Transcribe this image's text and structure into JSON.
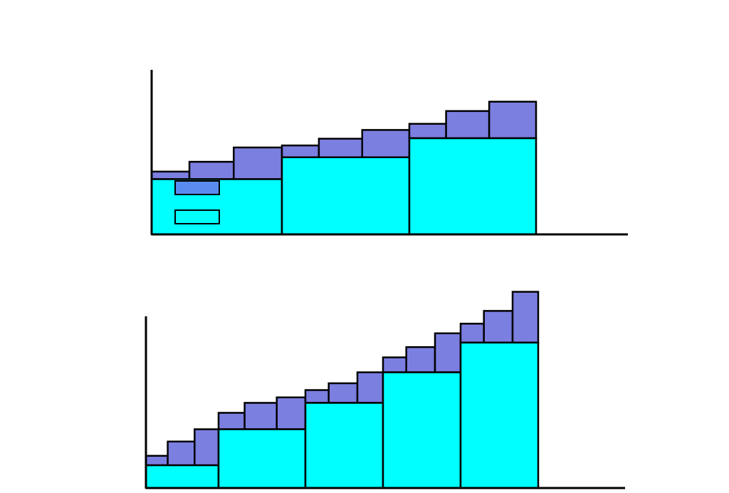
{
  "colors": {
    "background": "#ffffff",
    "base_fill": "#00ffff",
    "step_fill": "#7b7fe0",
    "legend_purple_fill": "#5a8cf0",
    "legend_cyan_fill": "#00ffff",
    "stroke": "#000000"
  },
  "diagrams": [
    {
      "name": "top-stepped-diagram",
      "groups": [
        {
          "base": 0.467,
          "steps": [
            0.531,
            0.614,
            0.735
          ]
        },
        {
          "base": 0.652,
          "steps": [
            0.752,
            0.809,
            0.883
          ]
        },
        {
          "base": 0.813,
          "steps": [
            0.935,
            1.043,
            1.122
          ]
        }
      ],
      "has_legend": true,
      "legend": [
        {
          "name": "legend-swatch-purple",
          "fill_key": "legend_purple_fill"
        },
        {
          "name": "legend-swatch-cyan",
          "fill_key": "legend_cyan_fill"
        }
      ]
    },
    {
      "name": "bottom-stepped-diagram",
      "groups": [
        {
          "base": 0.137,
          "steps": [
            0.194,
            0.28,
            0.354
          ]
        },
        {
          "base": 0.354,
          "steps": [
            0.453,
            0.513,
            0.546
          ]
        },
        {
          "base": 0.513,
          "steps": [
            0.59,
            0.631,
            0.697
          ]
        },
        {
          "base": 0.697,
          "steps": [
            0.787,
            0.849,
            0.932
          ]
        },
        {
          "base": 0.876,
          "steps": [
            0.99,
            1.067,
            1.182
          ]
        }
      ],
      "has_legend": false,
      "legend": []
    }
  ]
}
